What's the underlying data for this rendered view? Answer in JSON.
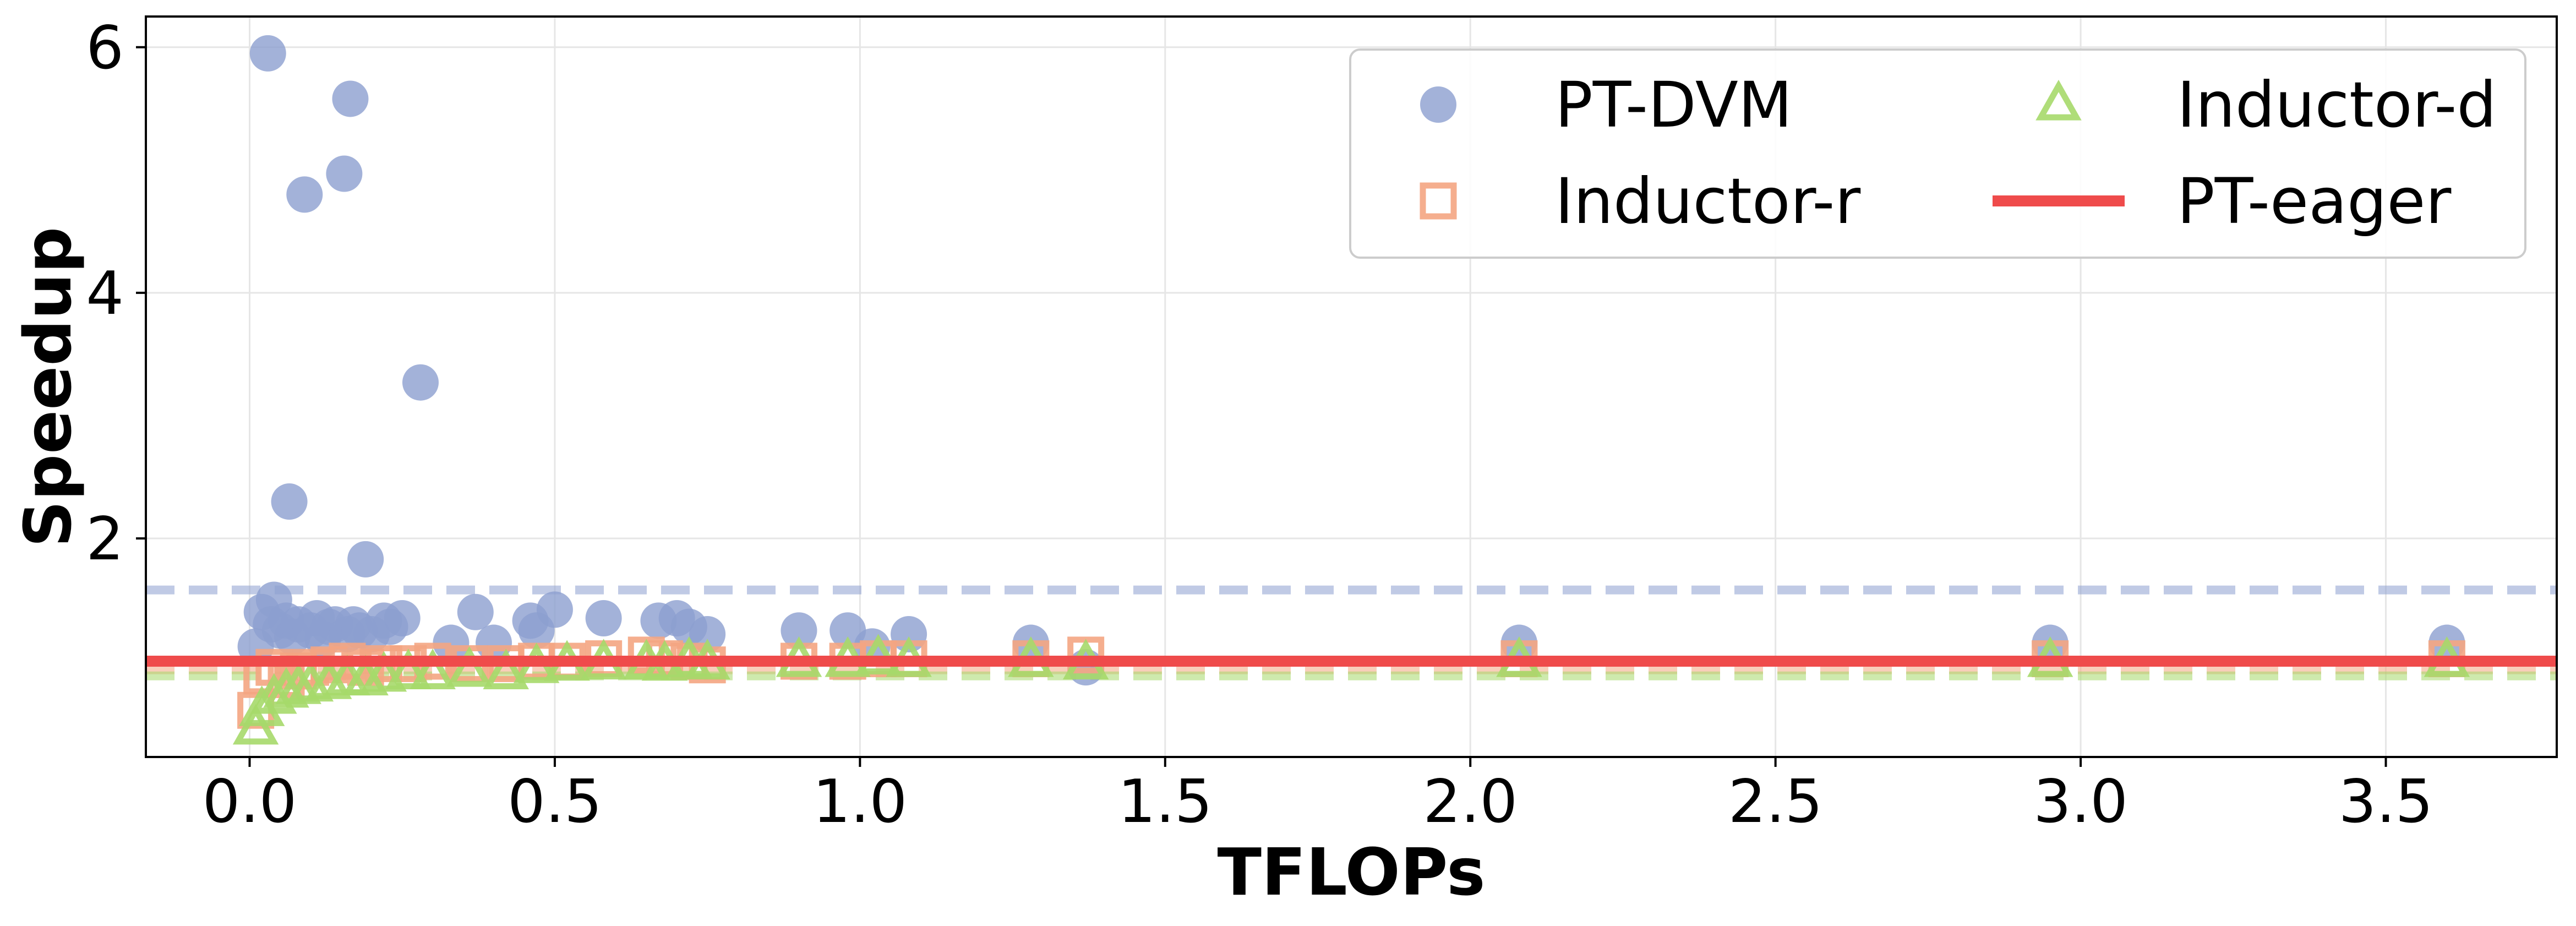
{
  "chart_data": {
    "type": "scatter",
    "xlabel": "TFLOPs",
    "ylabel": "Speedup",
    "xlim": [
      -0.17,
      3.78
    ],
    "ylim": [
      0.22,
      6.25
    ],
    "xticks": [
      0.0,
      0.5,
      1.0,
      1.5,
      2.0,
      2.5,
      3.0,
      3.5
    ],
    "xtick_labels": [
      "0.0",
      "0.5",
      "1.0",
      "1.5",
      "2.0",
      "2.5",
      "3.0",
      "3.5"
    ],
    "yticks": [
      2,
      4,
      6
    ],
    "ytick_labels": [
      "2",
      "4",
      "6"
    ],
    "grid": true,
    "legend_position": "top-right",
    "series": [
      {
        "name": "PT-DVM",
        "marker": "circle",
        "color": "#8c9fcf",
        "mean_line": 1.58,
        "points": [
          [
            0.01,
            1.12
          ],
          [
            0.02,
            1.4
          ],
          [
            0.03,
            5.95
          ],
          [
            0.035,
            1.3
          ],
          [
            0.04,
            1.5
          ],
          [
            0.05,
            1.25
          ],
          [
            0.06,
            1.33
          ],
          [
            0.065,
            2.3
          ],
          [
            0.07,
            1.2
          ],
          [
            0.08,
            1.3
          ],
          [
            0.09,
            4.8
          ],
          [
            0.1,
            1.25
          ],
          [
            0.11,
            1.35
          ],
          [
            0.12,
            1.18
          ],
          [
            0.13,
            1.28
          ],
          [
            0.14,
            1.3
          ],
          [
            0.155,
            4.97
          ],
          [
            0.16,
            1.22
          ],
          [
            0.165,
            5.58
          ],
          [
            0.17,
            1.3
          ],
          [
            0.18,
            1.25
          ],
          [
            0.19,
            1.83
          ],
          [
            0.2,
            1.22
          ],
          [
            0.22,
            1.33
          ],
          [
            0.23,
            1.28
          ],
          [
            0.25,
            1.35
          ],
          [
            0.28,
            3.27
          ],
          [
            0.33,
            1.15
          ],
          [
            0.37,
            1.4
          ],
          [
            0.4,
            1.15
          ],
          [
            0.46,
            1.33
          ],
          [
            0.47,
            1.25
          ],
          [
            0.5,
            1.42
          ],
          [
            0.58,
            1.35
          ],
          [
            0.67,
            1.33
          ],
          [
            0.7,
            1.35
          ],
          [
            0.72,
            1.28
          ],
          [
            0.75,
            1.22
          ],
          [
            0.9,
            1.25
          ],
          [
            0.98,
            1.25
          ],
          [
            1.02,
            1.12
          ],
          [
            1.08,
            1.22
          ],
          [
            1.28,
            1.15
          ],
          [
            1.37,
            0.95
          ],
          [
            2.08,
            1.15
          ],
          [
            2.95,
            1.15
          ],
          [
            3.6,
            1.15
          ]
        ]
      },
      {
        "name": "Inductor-r",
        "marker": "square",
        "color": "#f4a582",
        "mean_line": 0.93,
        "points": [
          [
            0.01,
            0.6
          ],
          [
            0.02,
            0.88
          ],
          [
            0.04,
            0.95
          ],
          [
            0.06,
            0.85
          ],
          [
            0.08,
            0.92
          ],
          [
            0.1,
            0.95
          ],
          [
            0.13,
            0.97
          ],
          [
            0.16,
            1.0
          ],
          [
            0.19,
            0.95
          ],
          [
            0.22,
            0.98
          ],
          [
            0.26,
            0.98
          ],
          [
            0.3,
            1.0
          ],
          [
            0.36,
            0.98
          ],
          [
            0.42,
            0.98
          ],
          [
            0.47,
            1.0
          ],
          [
            0.52,
            1.0
          ],
          [
            0.58,
            1.02
          ],
          [
            0.65,
            1.05
          ],
          [
            0.68,
            1.02
          ],
          [
            0.72,
            1.0
          ],
          [
            0.75,
            0.97
          ],
          [
            0.9,
            1.0
          ],
          [
            0.98,
            1.0
          ],
          [
            1.03,
            1.02
          ],
          [
            1.08,
            1.02
          ],
          [
            1.28,
            1.02
          ],
          [
            1.37,
            1.05
          ],
          [
            2.08,
            1.02
          ],
          [
            2.95,
            1.02
          ],
          [
            3.6,
            1.02
          ]
        ]
      },
      {
        "name": "Inductor-d",
        "marker": "triangle",
        "color": "#a6d96a",
        "mean_line": 0.88,
        "points": [
          [
            0.01,
            0.45
          ],
          [
            0.02,
            0.6
          ],
          [
            0.04,
            0.7
          ],
          [
            0.06,
            0.75
          ],
          [
            0.08,
            0.78
          ],
          [
            0.1,
            0.8
          ],
          [
            0.13,
            0.82
          ],
          [
            0.16,
            0.85
          ],
          [
            0.19,
            0.85
          ],
          [
            0.22,
            0.88
          ],
          [
            0.26,
            0.9
          ],
          [
            0.3,
            0.9
          ],
          [
            0.36,
            0.92
          ],
          [
            0.42,
            0.9
          ],
          [
            0.47,
            0.95
          ],
          [
            0.52,
            0.97
          ],
          [
            0.58,
            0.98
          ],
          [
            0.65,
            0.98
          ],
          [
            0.68,
            0.97
          ],
          [
            0.72,
            1.0
          ],
          [
            0.75,
            0.98
          ],
          [
            0.9,
            1.0
          ],
          [
            0.98,
            1.0
          ],
          [
            1.03,
            1.02
          ],
          [
            1.08,
            1.0
          ],
          [
            1.28,
            1.0
          ],
          [
            1.37,
            0.98
          ],
          [
            2.08,
            1.0
          ],
          [
            2.95,
            1.0
          ],
          [
            3.6,
            1.0
          ]
        ]
      },
      {
        "name": "PT-eager",
        "marker": "line",
        "color": "#ef4b4b",
        "value": 1.0
      }
    ]
  }
}
